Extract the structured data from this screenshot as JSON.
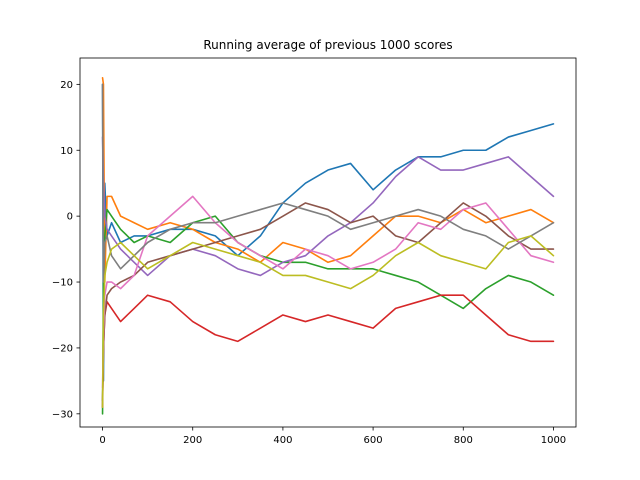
{
  "chart_data": {
    "type": "line",
    "title": "Running average of previous 1000 scores",
    "xlabel": "",
    "ylabel": "",
    "xlim": [
      -50,
      1050
    ],
    "ylim": [
      -32,
      24
    ],
    "xticks": [
      0,
      200,
      400,
      600,
      800,
      1000
    ],
    "yticks": [
      -30,
      -20,
      -10,
      0,
      10,
      20
    ],
    "grid": false,
    "legend": "none",
    "series": [
      {
        "color": "#1f77b4",
        "x": [
          0,
          2,
          5,
          10,
          20,
          40,
          70,
          100,
          150,
          200,
          250,
          300,
          350,
          400,
          450,
          500,
          550,
          600,
          650,
          700,
          750,
          800,
          850,
          900,
          950,
          1000
        ],
        "values": [
          20,
          -25,
          5,
          -3,
          -1,
          -4,
          -3,
          -3,
          -2,
          -2,
          -3,
          -6,
          -3,
          2,
          5,
          7,
          8,
          4,
          7,
          9,
          9,
          10,
          10,
          12,
          13,
          14
        ]
      },
      {
        "color": "#ff7f0e",
        "x": [
          0,
          2,
          5,
          10,
          20,
          40,
          70,
          100,
          150,
          200,
          250,
          300,
          350,
          400,
          450,
          500,
          550,
          600,
          650,
          700,
          750,
          800,
          850,
          900,
          950,
          1000
        ],
        "values": [
          21,
          20,
          -10,
          3,
          3,
          0,
          -1,
          -2,
          -1,
          -2,
          -4,
          -5,
          -7,
          -4,
          -5,
          -7,
          -6,
          -3,
          0,
          0,
          -1,
          1,
          -1,
          0,
          1,
          -1
        ]
      },
      {
        "color": "#2ca02c",
        "x": [
          0,
          2,
          5,
          10,
          20,
          40,
          70,
          100,
          150,
          200,
          250,
          300,
          350,
          400,
          450,
          500,
          550,
          600,
          650,
          700,
          750,
          800,
          850,
          900,
          950,
          1000
        ],
        "values": [
          -30,
          -10,
          -3,
          1,
          0,
          -2,
          -4,
          -3,
          -4,
          -1,
          0,
          -4,
          -6,
          -7,
          -7,
          -8,
          -8,
          -8,
          -9,
          -10,
          -12,
          -14,
          -11,
          -9,
          -10,
          -12
        ]
      },
      {
        "color": "#d62728",
        "x": [
          0,
          2,
          5,
          10,
          20,
          40,
          70,
          100,
          150,
          200,
          250,
          300,
          350,
          400,
          450,
          500,
          550,
          600,
          650,
          700,
          750,
          800,
          850,
          900,
          950,
          1000
        ],
        "values": [
          -29,
          -20,
          -15,
          -13,
          -14,
          -16,
          -14,
          -12,
          -13,
          -16,
          -18,
          -19,
          -17,
          -15,
          -16,
          -15,
          -16,
          -17,
          -14,
          -13,
          -12,
          -12,
          -15,
          -18,
          -19,
          -19
        ]
      },
      {
        "color": "#9467bd",
        "x": [
          0,
          2,
          5,
          10,
          20,
          40,
          70,
          100,
          150,
          200,
          250,
          300,
          350,
          400,
          450,
          500,
          550,
          600,
          650,
          700,
          750,
          800,
          850,
          900,
          950,
          1000
        ],
        "values": [
          12,
          5,
          0,
          -2,
          -3,
          -5,
          -7,
          -9,
          -6,
          -5,
          -6,
          -8,
          -9,
          -7,
          -6,
          -3,
          -1,
          2,
          6,
          9,
          7,
          7,
          8,
          9,
          6,
          3
        ]
      },
      {
        "color": "#8c564b",
        "x": [
          0,
          2,
          5,
          10,
          20,
          40,
          70,
          100,
          150,
          200,
          250,
          300,
          350,
          400,
          450,
          500,
          550,
          600,
          650,
          700,
          750,
          800,
          850,
          900,
          950,
          1000
        ],
        "values": [
          -28,
          -20,
          -15,
          -12,
          -11,
          -10,
          -9,
          -7,
          -6,
          -5,
          -4,
          -3,
          -2,
          0,
          2,
          1,
          -1,
          0,
          -3,
          -4,
          -1,
          2,
          0,
          -3,
          -5,
          -5
        ]
      },
      {
        "color": "#e377c2",
        "x": [
          0,
          2,
          5,
          10,
          20,
          40,
          70,
          100,
          150,
          200,
          250,
          300,
          350,
          400,
          450,
          500,
          550,
          600,
          650,
          700,
          750,
          800,
          850,
          900,
          950,
          1000
        ],
        "values": [
          -26,
          -18,
          -12,
          -10,
          -10,
          -11,
          -9,
          -3,
          0,
          3,
          -1,
          -4,
          -6,
          -8,
          -5,
          -6,
          -8,
          -7,
          -5,
          -1,
          -2,
          1,
          2,
          -2,
          -6,
          -7
        ]
      },
      {
        "color": "#7f7f7f",
        "x": [
          0,
          2,
          5,
          10,
          20,
          40,
          70,
          100,
          150,
          200,
          250,
          300,
          350,
          400,
          450,
          500,
          550,
          600,
          650,
          700,
          750,
          800,
          850,
          900,
          950,
          1000
        ],
        "values": [
          20,
          -10,
          -4,
          -3,
          -6,
          -8,
          -6,
          -4,
          -2,
          -1,
          -1,
          0,
          1,
          2,
          1,
          0,
          -2,
          -1,
          0,
          1,
          0,
          -2,
          -3,
          -5,
          -3,
          -1
        ]
      },
      {
        "color": "#bcbd22",
        "x": [
          0,
          2,
          5,
          10,
          20,
          40,
          70,
          100,
          150,
          200,
          250,
          300,
          350,
          400,
          450,
          500,
          550,
          600,
          650,
          700,
          750,
          800,
          850,
          900,
          950,
          1000
        ],
        "values": [
          -29,
          -15,
          -9,
          -7,
          -5,
          -4,
          -6,
          -8,
          -6,
          -4,
          -5,
          -6,
          -7,
          -9,
          -9,
          -10,
          -11,
          -9,
          -6,
          -4,
          -6,
          -7,
          -8,
          -4,
          -3,
          -6
        ]
      }
    ]
  }
}
